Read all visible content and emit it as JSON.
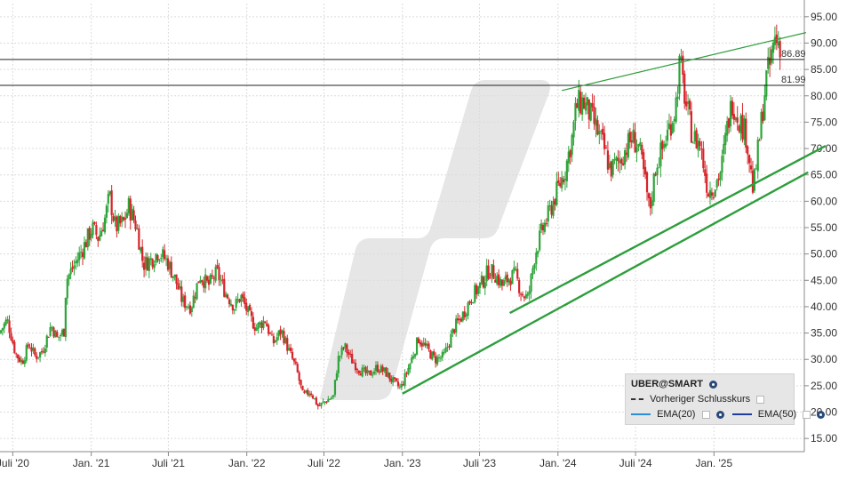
{
  "chart_data": {
    "type": "candlestick",
    "ticker": "UBER@SMART",
    "y_axis": {
      "ticks": [
        "95.00",
        "90.00",
        "85.00",
        "80.00",
        "75.00",
        "70.00",
        "65.00",
        "60.00",
        "55.00",
        "50.00",
        "45.00",
        "40.00",
        "35.00",
        "30.00",
        "25.00",
        "20.00",
        "15.00"
      ],
      "ylim": [
        12.5,
        97.5
      ],
      "position": "right",
      "grid": true
    },
    "x_axis": {
      "ticks": [
        "Juli '20",
        "Jan. '21",
        "Juli '21",
        "Jan. '22",
        "Juli '22",
        "Jan. '23",
        "Juli '23",
        "Jan. '24",
        "Juli '24",
        "Jan. '25"
      ],
      "tick_dates": [
        "2020-07",
        "2021-01",
        "2021-07",
        "2022-01",
        "2022-07",
        "2023-01",
        "2023-07",
        "2024-01",
        "2024-07",
        "2025-01"
      ],
      "xlim": [
        "2020-06",
        "2025-08"
      ],
      "grid": true
    },
    "horizontal_lines": [
      {
        "label": "86.89",
        "value": 86.89,
        "color": "#222222"
      },
      {
        "label": "81.99",
        "value": 81.99,
        "color": "#222222"
      }
    ],
    "trendlines": [
      {
        "from": [
          "2023-01-01",
          23.5
        ],
        "to": [
          "2025-08-10",
          65.5
        ],
        "color": "#2e9e3c"
      },
      {
        "from": [
          "2023-09-10",
          38.8
        ],
        "to": [
          "2025-09-20",
          70.5
        ],
        "color": "#2e9e3c"
      },
      {
        "from": [
          "2024-01-10",
          81.0
        ],
        "to": [
          "2025-08-05",
          92.0
        ],
        "color": "#2e9e3c"
      }
    ],
    "price_path": [
      [
        "2020-06-01",
        35.0
      ],
      [
        "2020-06-20",
        37.5
      ],
      [
        "2020-07-10",
        31.0
      ],
      [
        "2020-07-25",
        29.5
      ],
      [
        "2020-08-10",
        33.0
      ],
      [
        "2020-08-25",
        30.5
      ],
      [
        "2020-09-10",
        31.5
      ],
      [
        "2020-10-01",
        36.5
      ],
      [
        "2020-10-15",
        34.0
      ],
      [
        "2020-11-01",
        35.5
      ],
      [
        "2020-11-05",
        45.0
      ],
      [
        "2020-11-25",
        48.0
      ],
      [
        "2020-12-20",
        52.0
      ],
      [
        "2021-01-05",
        55.0
      ],
      [
        "2021-01-20",
        53.0
      ],
      [
        "2021-02-05",
        57.0
      ],
      [
        "2021-02-15",
        61.0
      ],
      [
        "2021-03-01",
        55.0
      ],
      [
        "2021-03-20",
        56.0
      ],
      [
        "2021-04-01",
        59.0
      ],
      [
        "2021-04-20",
        55.0
      ],
      [
        "2021-05-05",
        48.0
      ],
      [
        "2021-05-25",
        49.0
      ],
      [
        "2021-06-10",
        50.5
      ],
      [
        "2021-07-01",
        48.5
      ],
      [
        "2021-07-20",
        45.0
      ],
      [
        "2021-08-05",
        41.0
      ],
      [
        "2021-08-25",
        40.0
      ],
      [
        "2021-09-15",
        46.0
      ],
      [
        "2021-10-05",
        44.0
      ],
      [
        "2021-10-25",
        46.5
      ],
      [
        "2021-11-15",
        42.5
      ],
      [
        "2021-12-05",
        40.0
      ],
      [
        "2021-12-20",
        42.0
      ],
      [
        "2022-01-10",
        38.0
      ],
      [
        "2022-01-25",
        36.0
      ],
      [
        "2022-02-15",
        37.5
      ],
      [
        "2022-03-05",
        33.0
      ],
      [
        "2022-03-25",
        35.5
      ],
      [
        "2022-04-10",
        32.0
      ],
      [
        "2022-04-30",
        28.0
      ],
      [
        "2022-05-15",
        23.0
      ],
      [
        "2022-06-01",
        24.0
      ],
      [
        "2022-06-20",
        21.0
      ],
      [
        "2022-07-05",
        22.0
      ],
      [
        "2022-07-25",
        23.0
      ],
      [
        "2022-08-05",
        30.0
      ],
      [
        "2022-08-20",
        32.5
      ],
      [
        "2022-09-05",
        30.0
      ],
      [
        "2022-09-25",
        28.0
      ],
      [
        "2022-10-15",
        27.0
      ],
      [
        "2022-11-05",
        28.5
      ],
      [
        "2022-11-25",
        27.5
      ],
      [
        "2022-12-15",
        25.5
      ],
      [
        "2022-12-30",
        24.5
      ],
      [
        "2023-01-20",
        29.0
      ],
      [
        "2023-02-10",
        34.0
      ],
      [
        "2023-03-01",
        32.0
      ],
      [
        "2023-03-20",
        30.0
      ],
      [
        "2023-04-10",
        30.5
      ],
      [
        "2023-05-05",
        36.0
      ],
      [
        "2023-05-25",
        38.5
      ],
      [
        "2023-06-15",
        42.0
      ],
      [
        "2023-07-05",
        44.0
      ],
      [
        "2023-07-25",
        47.0
      ],
      [
        "2023-08-10",
        46.0
      ],
      [
        "2023-08-25",
        44.0
      ],
      [
        "2023-09-10",
        45.5
      ],
      [
        "2023-09-25",
        46.0
      ],
      [
        "2023-10-10",
        42.5
      ],
      [
        "2023-10-25",
        41.5
      ],
      [
        "2023-11-10",
        50.0
      ],
      [
        "2023-11-25",
        54.0
      ],
      [
        "2023-12-10",
        57.0
      ],
      [
        "2023-12-30",
        61.5
      ],
      [
        "2024-01-20",
        66.0
      ],
      [
        "2024-02-05",
        72.0
      ],
      [
        "2024-02-15",
        78.0
      ],
      [
        "2024-03-01",
        79.0
      ],
      [
        "2024-03-15",
        77.0
      ],
      [
        "2024-04-01",
        74.0
      ],
      [
        "2024-04-20",
        70.0
      ],
      [
        "2024-05-05",
        66.0
      ],
      [
        "2024-05-25",
        67.5
      ],
      [
        "2024-06-10",
        70.0
      ],
      [
        "2024-06-25",
        72.0
      ],
      [
        "2024-07-10",
        70.5
      ],
      [
        "2024-07-25",
        64.0
      ],
      [
        "2024-08-05",
        58.0
      ],
      [
        "2024-08-20",
        67.0
      ],
      [
        "2024-09-05",
        70.0
      ],
      [
        "2024-09-20",
        74.0
      ],
      [
        "2024-10-05",
        78.0
      ],
      [
        "2024-10-15",
        86.5
      ],
      [
        "2024-10-30",
        78.0
      ],
      [
        "2024-11-15",
        72.0
      ],
      [
        "2024-12-01",
        71.0
      ],
      [
        "2024-12-20",
        62.0
      ],
      [
        "2025-01-05",
        63.0
      ],
      [
        "2025-01-20",
        66.0
      ],
      [
        "2025-02-05",
        75.0
      ],
      [
        "2025-02-15",
        79.0
      ],
      [
        "2025-03-01",
        76.0
      ],
      [
        "2025-03-20",
        72.5
      ],
      [
        "2025-04-05",
        62.0
      ],
      [
        "2025-04-20",
        72.0
      ],
      [
        "2025-05-05",
        83.0
      ],
      [
        "2025-05-15",
        86.0
      ],
      [
        "2025-05-25",
        91.0
      ],
      [
        "2025-06-05",
        90.0
      ]
    ]
  },
  "legend": {
    "title": "UBER@SMART",
    "prev_close_label": "Vorheriger Schlusskurs",
    "ema20_label": "EMA(20)",
    "ema50_label": "EMA(50)",
    "colors": {
      "ema20": "#2b8fd8",
      "ema50": "#1f3c9e",
      "up": "#2ea43a",
      "down": "#d6242a"
    }
  },
  "icons": [
    "eye-icon",
    "checkbox-icon"
  ]
}
